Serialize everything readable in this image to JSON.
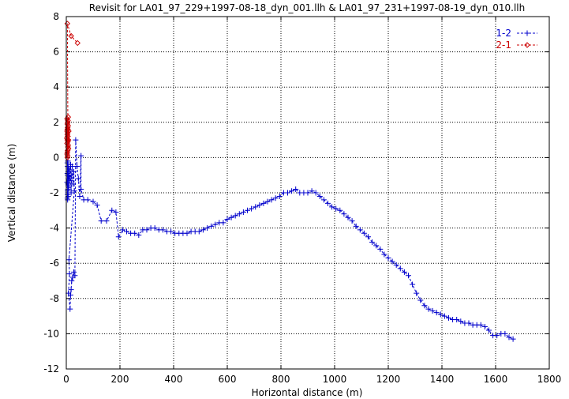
{
  "chart_data": {
    "type": "line",
    "title": "Revisit for LA01_97_229+1997-08-18_dyn_001.llh & LA01_97_231+1997-08-19_dyn_010.llh",
    "xlabel": "Horizontal distance (m)",
    "ylabel": "Vertical distance (m)",
    "xlim": [
      0,
      1800
    ],
    "ylim": [
      -12,
      8
    ],
    "xticks": [
      0,
      200,
      400,
      600,
      800,
      1000,
      1200,
      1400,
      1600,
      1800
    ],
    "yticks": [
      -12,
      -10,
      -8,
      -6,
      -4,
      -2,
      0,
      2,
      4,
      6,
      8
    ],
    "grid": true,
    "legend_position": "top-right",
    "series": [
      {
        "name": "1-2",
        "color": "#0000cc",
        "marker": "plus",
        "line": "dashed",
        "points": [
          [
            5,
            -0.5
          ],
          [
            6,
            -1.5
          ],
          [
            4,
            -2.3
          ],
          [
            7,
            -0.8
          ],
          [
            5,
            -1.9
          ],
          [
            8,
            -1.2
          ],
          [
            6,
            -2.0
          ],
          [
            4,
            -0.3
          ],
          [
            9,
            -1.7
          ],
          [
            5,
            -1.0
          ],
          [
            7,
            -2.2
          ],
          [
            3,
            -1.4
          ],
          [
            8,
            -0.6
          ],
          [
            6,
            -1.8
          ],
          [
            5,
            -2.4
          ],
          [
            10,
            -1.1
          ],
          [
            4,
            -0.9
          ],
          [
            7,
            -1.6
          ],
          [
            6,
            -0.2
          ],
          [
            5,
            -2.1
          ],
          [
            12,
            -0.7
          ],
          [
            14,
            -1.3
          ],
          [
            16,
            -0.4
          ],
          [
            18,
            -2.0
          ],
          [
            20,
            -1.0
          ],
          [
            22,
            -0.5
          ],
          [
            25,
            -1.5
          ],
          [
            28,
            -0.8
          ],
          [
            30,
            -1.9
          ],
          [
            10,
            -5.8
          ],
          [
            12,
            -6.6
          ],
          [
            8,
            -7.7
          ],
          [
            14,
            -8.6
          ],
          [
            16,
            -7.8
          ],
          [
            18,
            -7.5
          ],
          [
            20,
            -7.0
          ],
          [
            24,
            -6.8
          ],
          [
            28,
            -6.5
          ],
          [
            32,
            -6.7
          ],
          [
            35,
            1.0
          ],
          [
            40,
            -0.5
          ],
          [
            45,
            -1.2
          ],
          [
            50,
            -2.2
          ],
          [
            55,
            0.1
          ],
          [
            55,
            -1.8
          ],
          [
            65,
            -2.4
          ],
          [
            80,
            -2.4
          ],
          [
            100,
            -2.5
          ],
          [
            115,
            -2.7
          ],
          [
            130,
            -3.6
          ],
          [
            150,
            -3.6
          ],
          [
            170,
            -3.0
          ],
          [
            185,
            -3.1
          ],
          [
            195,
            -4.5
          ],
          [
            210,
            -4.1
          ],
          [
            225,
            -4.2
          ],
          [
            240,
            -4.3
          ],
          [
            255,
            -4.3
          ],
          [
            270,
            -4.4
          ],
          [
            285,
            -4.1
          ],
          [
            300,
            -4.1
          ],
          [
            315,
            -4.0
          ],
          [
            330,
            -4.0
          ],
          [
            345,
            -4.1
          ],
          [
            360,
            -4.1
          ],
          [
            375,
            -4.2
          ],
          [
            390,
            -4.2
          ],
          [
            405,
            -4.3
          ],
          [
            420,
            -4.3
          ],
          [
            435,
            -4.3
          ],
          [
            450,
            -4.3
          ],
          [
            465,
            -4.2
          ],
          [
            480,
            -4.2
          ],
          [
            495,
            -4.2
          ],
          [
            510,
            -4.1
          ],
          [
            525,
            -4.0
          ],
          [
            540,
            -3.9
          ],
          [
            555,
            -3.8
          ],
          [
            570,
            -3.7
          ],
          [
            585,
            -3.7
          ],
          [
            600,
            -3.5
          ],
          [
            615,
            -3.4
          ],
          [
            630,
            -3.3
          ],
          [
            645,
            -3.2
          ],
          [
            660,
            -3.1
          ],
          [
            675,
            -3.0
          ],
          [
            690,
            -2.9
          ],
          [
            705,
            -2.8
          ],
          [
            720,
            -2.7
          ],
          [
            735,
            -2.6
          ],
          [
            750,
            -2.5
          ],
          [
            765,
            -2.4
          ],
          [
            780,
            -2.3
          ],
          [
            795,
            -2.2
          ],
          [
            810,
            -2.0
          ],
          [
            825,
            -2.0
          ],
          [
            840,
            -1.9
          ],
          [
            855,
            -1.8
          ],
          [
            870,
            -2.0
          ],
          [
            885,
            -2.0
          ],
          [
            900,
            -2.0
          ],
          [
            915,
            -1.9
          ],
          [
            930,
            -2.0
          ],
          [
            945,
            -2.2
          ],
          [
            960,
            -2.4
          ],
          [
            975,
            -2.6
          ],
          [
            990,
            -2.8
          ],
          [
            1005,
            -2.9
          ],
          [
            1020,
            -3.0
          ],
          [
            1035,
            -3.2
          ],
          [
            1050,
            -3.4
          ],
          [
            1065,
            -3.6
          ],
          [
            1080,
            -3.9
          ],
          [
            1095,
            -4.1
          ],
          [
            1110,
            -4.3
          ],
          [
            1125,
            -4.5
          ],
          [
            1140,
            -4.8
          ],
          [
            1155,
            -5.0
          ],
          [
            1170,
            -5.2
          ],
          [
            1185,
            -5.5
          ],
          [
            1200,
            -5.7
          ],
          [
            1215,
            -5.9
          ],
          [
            1230,
            -6.1
          ],
          [
            1245,
            -6.3
          ],
          [
            1260,
            -6.5
          ],
          [
            1275,
            -6.7
          ],
          [
            1290,
            -7.2
          ],
          [
            1305,
            -7.7
          ],
          [
            1320,
            -8.1
          ],
          [
            1335,
            -8.4
          ],
          [
            1350,
            -8.6
          ],
          [
            1365,
            -8.7
          ],
          [
            1380,
            -8.8
          ],
          [
            1395,
            -8.9
          ],
          [
            1410,
            -9.0
          ],
          [
            1425,
            -9.1
          ],
          [
            1440,
            -9.2
          ],
          [
            1455,
            -9.2
          ],
          [
            1470,
            -9.3
          ],
          [
            1485,
            -9.4
          ],
          [
            1500,
            -9.4
          ],
          [
            1515,
            -9.5
          ],
          [
            1530,
            -9.5
          ],
          [
            1545,
            -9.5
          ],
          [
            1560,
            -9.6
          ],
          [
            1575,
            -9.8
          ],
          [
            1590,
            -10.1
          ],
          [
            1605,
            -10.1
          ],
          [
            1620,
            -10.0
          ],
          [
            1635,
            -10.0
          ],
          [
            1650,
            -10.2
          ],
          [
            1665,
            -10.3
          ]
        ]
      },
      {
        "name": "2-1",
        "color": "#cc0000",
        "marker": "diamond",
        "line": "dashed",
        "points": [
          [
            4,
            0.0
          ],
          [
            5,
            0.4
          ],
          [
            3,
            0.8
          ],
          [
            6,
            1.2
          ],
          [
            4,
            1.6
          ],
          [
            5,
            2.0
          ],
          [
            7,
            2.3
          ],
          [
            3,
            0.2
          ],
          [
            6,
            0.6
          ],
          [
            4,
            1.0
          ],
          [
            5,
            1.4
          ],
          [
            7,
            1.8
          ],
          [
            3,
            2.2
          ],
          [
            6,
            0.9
          ],
          [
            4,
            1.3
          ],
          [
            5,
            1.7
          ],
          [
            8,
            0.5
          ],
          [
            2,
            1.1
          ],
          [
            9,
            1.5
          ],
          [
            5,
            0.1
          ],
          [
            4,
            1.9
          ],
          [
            6,
            2.1
          ],
          [
            3,
            1.5
          ],
          [
            7,
            0.7
          ],
          [
            5,
            1.2
          ],
          [
            4,
            0.3
          ],
          [
            8,
            1.0
          ],
          [
            6,
            1.6
          ],
          [
            4,
            7.6
          ],
          [
            18,
            6.9
          ],
          [
            42,
            6.5
          ]
        ]
      }
    ]
  }
}
